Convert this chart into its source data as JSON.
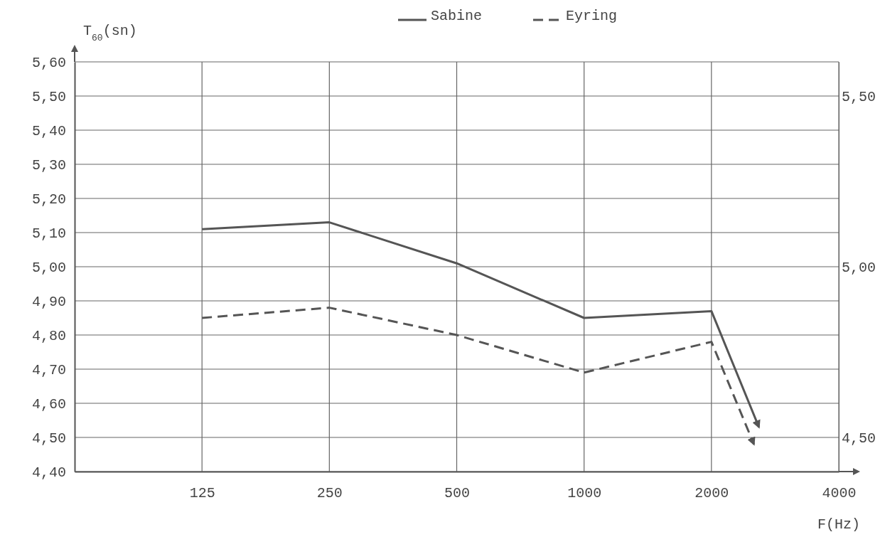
{
  "chart_data": {
    "type": "line",
    "xlabel": "F(Hz)",
    "ylabel": "T$_{60}$(sn)",
    "log": "x",
    "xlim": [
      62.5,
      4000
    ],
    "xticks": [
      125,
      250,
      500,
      1000,
      2000,
      4000
    ],
    "ylim": [
      4.4,
      5.6
    ],
    "yticks": [
      {
        "value": 4.4,
        "label": "4,40"
      },
      {
        "value": 4.5,
        "label": "4,50"
      },
      {
        "value": 4.6,
        "label": "4,60"
      },
      {
        "value": 4.7,
        "label": "4,70"
      },
      {
        "value": 4.8,
        "label": "4,80"
      },
      {
        "value": 4.9,
        "label": "4,90"
      },
      {
        "value": 5.0,
        "label": "5,00"
      },
      {
        "value": 5.1,
        "label": "5,10"
      },
      {
        "value": 5.2,
        "label": "5,20"
      },
      {
        "value": 5.3,
        "label": "5,30"
      },
      {
        "value": 5.4,
        "label": "5,40"
      },
      {
        "value": 5.5,
        "label": "5,50"
      },
      {
        "value": 5.6,
        "label": "5,60"
      }
    ],
    "y2lim": [
      4.4,
      5.6
    ],
    "y2ticks": [
      {
        "value": 4.5,
        "label": "4,50"
      },
      {
        "value": 5.0,
        "label": "5,00"
      },
      {
        "value": 5.5,
        "label": "5,50"
      }
    ],
    "grid": true,
    "legend": "top right",
    "marker": "none",
    "series": [
      {
        "name": "Sabine",
        "color": "#555555",
        "line_style": "solid",
        "x": [
          125,
          250,
          500,
          1000,
          2000,
          2590
        ],
        "values": [
          5.11,
          5.13,
          5.01,
          4.85,
          4.87,
          4.53
        ]
      },
      {
        "name": "Eyring",
        "color": "#555555",
        "line_style": "dashed",
        "x": [
          125,
          250,
          500,
          1000,
          2000,
          2520
        ],
        "values": [
          4.85,
          4.88,
          4.8,
          4.69,
          4.78,
          4.48
        ]
      }
    ]
  }
}
